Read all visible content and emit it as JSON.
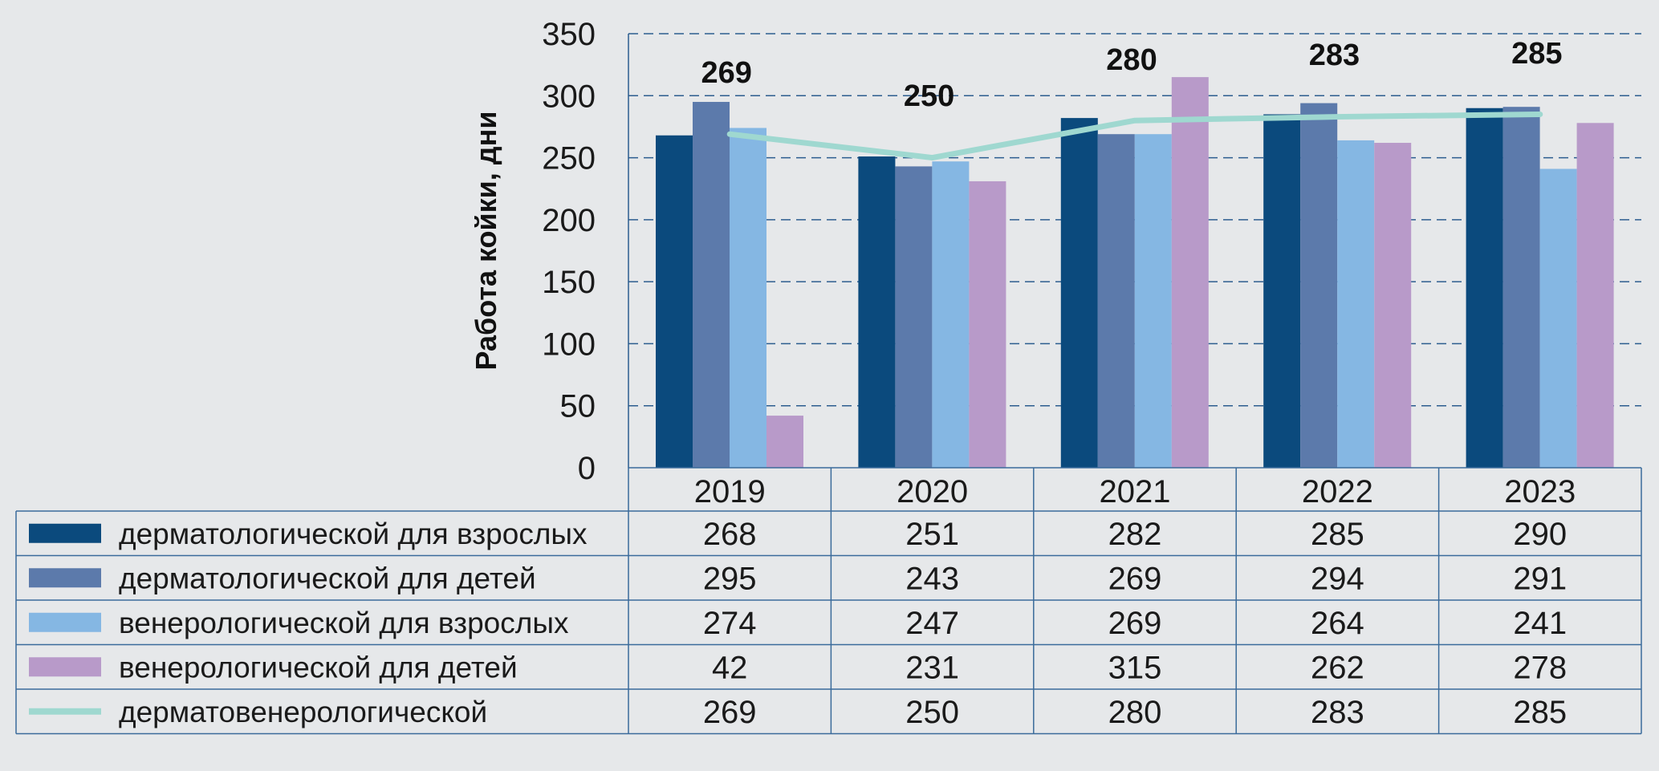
{
  "chart_data": {
    "type": "bar",
    "categories": [
      "2019",
      "2020",
      "2021",
      "2022",
      "2023"
    ],
    "ylabel": "Работа койки, дни",
    "ylim": [
      0,
      350
    ],
    "yticks": [
      0,
      50,
      100,
      150,
      200,
      250,
      300,
      350
    ],
    "grid": true,
    "series": [
      {
        "name": "дерматологической для взрослых",
        "type": "bar",
        "color": "#0b4a7d",
        "values": [
          268,
          251,
          282,
          285,
          290
        ]
      },
      {
        "name": "дерматологической для детей",
        "type": "bar",
        "color": "#5c7aab",
        "values": [
          295,
          243,
          269,
          294,
          291
        ]
      },
      {
        "name": "венерологической для взрослых",
        "type": "bar",
        "color": "#85b7e3",
        "values": [
          274,
          247,
          269,
          264,
          241
        ]
      },
      {
        "name": "венерологической для детей",
        "type": "bar",
        "color": "#b89ac9",
        "values": [
          42,
          231,
          315,
          262,
          278
        ]
      },
      {
        "name": "дерматовенерологической",
        "type": "line",
        "color": "#9fd8d0",
        "values": [
          269,
          250,
          280,
          283,
          285
        ]
      }
    ],
    "data_labels": [
      "269",
      "250",
      "280",
      "283",
      "285"
    ]
  }
}
